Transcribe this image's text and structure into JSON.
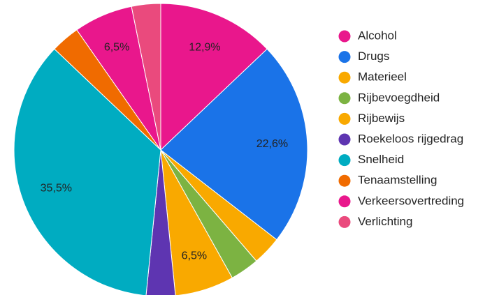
{
  "chart_data": {
    "type": "pie",
    "categories": [
      "Alcohol",
      "Drugs",
      "Materieel",
      "Rijbevoegdheid",
      "Rijbewijs",
      "Roekeloos rijgedrag",
      "Snelheid",
      "Tenaamstelling",
      "Verkeersovertreding",
      "Verlichting"
    ],
    "values": [
      12.9,
      22.6,
      3.2,
      3.2,
      6.5,
      3.2,
      35.5,
      3.2,
      6.5,
      3.2
    ],
    "value_labels": [
      "12,9%",
      "22,6%",
      null,
      null,
      "6,5%",
      null,
      "35,5%",
      null,
      "6,5%",
      null
    ],
    "colors": [
      "#e9178c",
      "#1a73e8",
      "#f9a900",
      "#7cb342",
      "#f9a900",
      "#5e35b1",
      "#00acc1",
      "#f06b00",
      "#e9178c",
      "#ea4a7d"
    ],
    "legend": "right"
  }
}
